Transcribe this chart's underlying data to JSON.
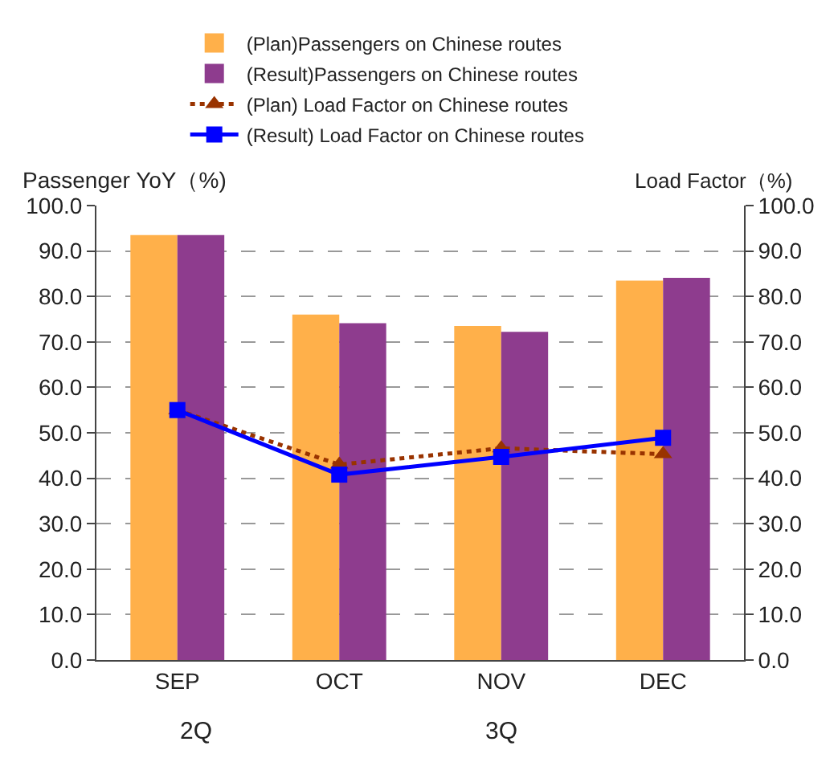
{
  "chart_data": {
    "type": "bar",
    "categories": [
      "SEP",
      "OCT",
      "NOV",
      "DEC"
    ],
    "ylabel": "Passenger YoY（%)",
    "y2label": "Load Factor（%)",
    "series": [
      {
        "name": "(Plan)Passengers on Chinese routes",
        "color": "#ffb04a",
        "values": [
          93.5,
          76.0,
          73.5,
          83.5
        ]
      },
      {
        "name": "(Result)Passengers on Chinese routes",
        "color": "#8e3c8e",
        "values": [
          93.5,
          74.1,
          72.2,
          84.1
        ]
      },
      {
        "name": "(Plan) Load Factor on Chinese routes",
        "type": "line",
        "axis": "y2",
        "color": "#993300",
        "line_style": "dotted",
        "marker": "triangle",
        "values": [
          55.0,
          43.0,
          46.6,
          45.3
        ]
      },
      {
        "name": "(Result) Load Factor on Chinese routes",
        "type": "line",
        "axis": "y2",
        "color": "#0000ff",
        "line_style": "solid",
        "marker": "square",
        "values": [
          55.0,
          40.8,
          44.7,
          48.9
        ]
      }
    ],
    "ylim": [
      0,
      100
    ],
    "yticks": [
      {
        "value": 0,
        "label": "0.0"
      },
      {
        "value": 10,
        "label": "10.0"
      },
      {
        "value": 20,
        "label": "20.0"
      },
      {
        "value": 30,
        "label": "30.0"
      },
      {
        "value": 40,
        "label": "40.0"
      },
      {
        "value": 50,
        "label": "50.0"
      },
      {
        "value": 60,
        "label": "60.0"
      },
      {
        "value": 70,
        "label": "70.0"
      },
      {
        "value": 80,
        "label": "80.0"
      },
      {
        "value": 90,
        "label": "90.0"
      },
      {
        "value": 100,
        "label": "100.0"
      }
    ],
    "y2lim": [
      0,
      100
    ],
    "y2ticks": [
      {
        "value": 0,
        "label": "0.0"
      },
      {
        "value": 10,
        "label": "10.0"
      },
      {
        "value": 20,
        "label": "20.0"
      },
      {
        "value": 30,
        "label": "30.0"
      },
      {
        "value": 40,
        "label": "40.0"
      },
      {
        "value": 50,
        "label": "50.0"
      },
      {
        "value": 60,
        "label": "60.0"
      },
      {
        "value": 70,
        "label": "70.0"
      },
      {
        "value": 80,
        "label": "80.0"
      },
      {
        "value": 90,
        "label": "90.0"
      },
      {
        "value": 100,
        "label": "100.0"
      }
    ],
    "annotations": [
      "2Q",
      "3Q"
    ],
    "grid": "y",
    "legend": "top"
  }
}
